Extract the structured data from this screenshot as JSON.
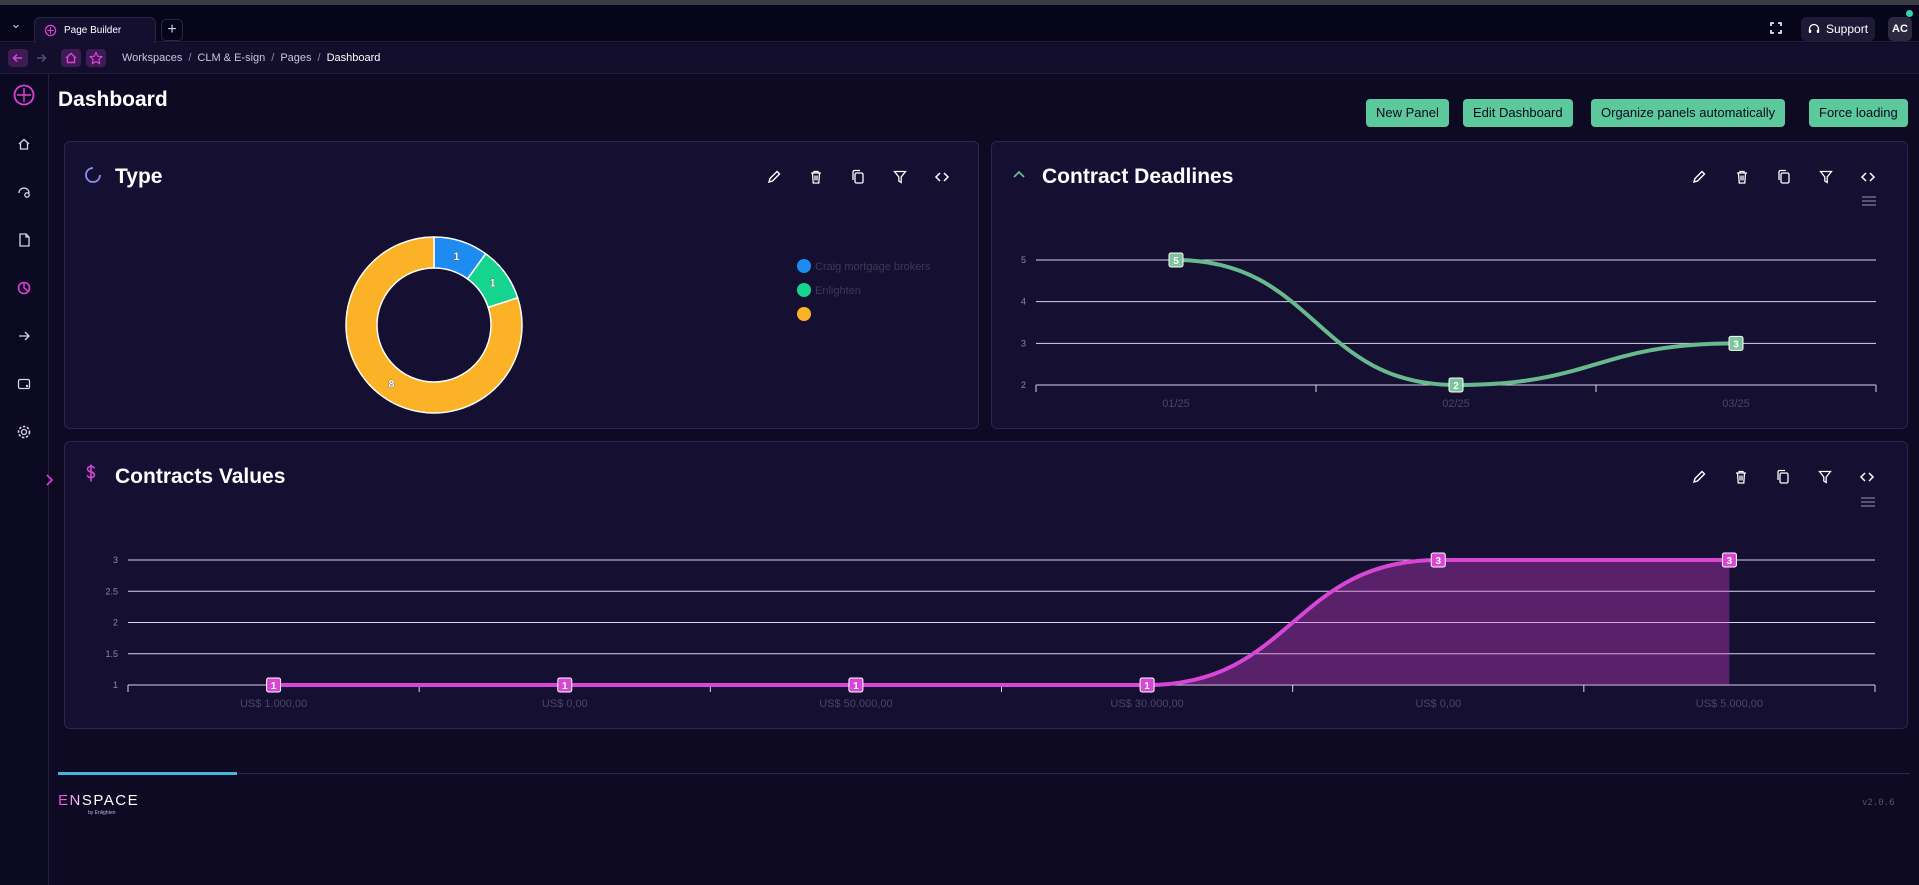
{
  "tabs": [
    {
      "label": "Page Builder",
      "active": true
    }
  ],
  "topbar": {
    "support_label": "Support",
    "avatar_initials": "AC"
  },
  "breadcrumb": {
    "items": [
      "Workspaces",
      "CLM & E-sign",
      "Pages",
      "Dashboard"
    ],
    "separator": "/"
  },
  "page": {
    "title": "Dashboard"
  },
  "actions": [
    "New Panel",
    "Edit Dashboard",
    "Organize panels automatically",
    "Force loading"
  ],
  "colors": {
    "accent": "#e040d8",
    "button": "#5bc99c",
    "donut_blue": "#1e8bf0",
    "donut_green": "#15d48d",
    "donut_orange": "#fbb227",
    "deadline_line": "#69b98f",
    "values_line": "#d846d6"
  },
  "panels": {
    "type": {
      "title": "Type",
      "icon": "spinner-icon"
    },
    "deadlines": {
      "title": "Contract Deadlines",
      "icon": "chevron-up-icon"
    },
    "values": {
      "title": "Contracts Values",
      "icon": "dollar-icon"
    }
  },
  "chart_data": [
    {
      "type": "pie",
      "variant": "donut",
      "labels": [
        "Craig mortgage brokers",
        "Enlighten",
        ""
      ],
      "values": [
        1,
        1,
        8
      ],
      "colors": [
        "#1e8bf0",
        "#15d48d",
        "#fbb227"
      ],
      "legend": "right"
    },
    {
      "type": "line",
      "smooth": true,
      "categories": [
        "01/25",
        "02/25",
        "03/25"
      ],
      "values": [
        5,
        2,
        3
      ],
      "ylim": [
        2,
        5
      ],
      "yticks": [
        "5",
        "4",
        "3",
        "2"
      ],
      "grid": true
    },
    {
      "type": "area",
      "smooth": true,
      "categories": [
        "US$ 1.000,00",
        "US$ 0,00",
        "US$ 50.000,00",
        "US$ 30.000,00",
        "US$ 0,00",
        "US$ 5.000,00"
      ],
      "values": [
        1,
        1,
        1,
        1,
        3,
        3
      ],
      "ylim": [
        1,
        3
      ],
      "yticks": [
        "3",
        "2.5",
        "2",
        "1.5",
        "1"
      ],
      "grid": true
    }
  ],
  "footer": {
    "logo": "ENSPACE",
    "logo_sub": "by Enlighten",
    "version": "v2.0.6"
  }
}
